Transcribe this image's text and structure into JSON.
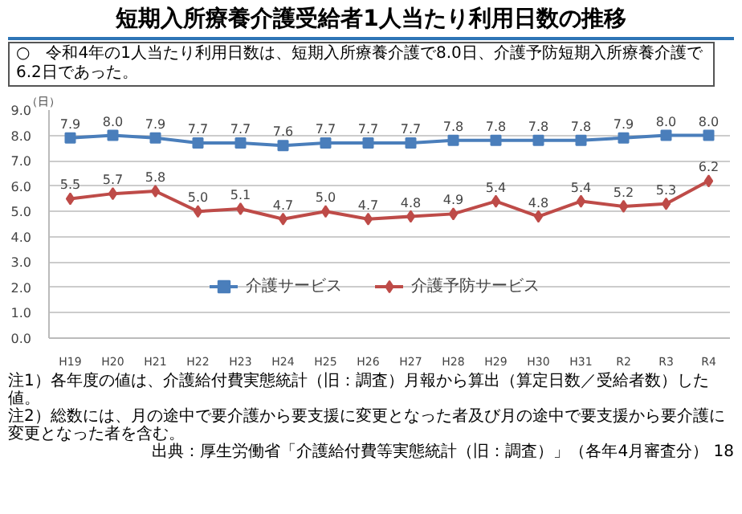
{
  "chart_data": {
    "type": "line",
    "title": "短期入所療養介護受給者1人当たり利用日数の推移",
    "subtitle": "○　令和4年の1人当たり利用日数は、短期入所療養介護で8.0日、介護予防短期入所療養介護で6.2日であった。",
    "ylabel": "（日）",
    "categories": [
      "H19",
      "H20",
      "H21",
      "H22",
      "H23",
      "H24",
      "H25",
      "H26",
      "H27",
      "H28",
      "H29",
      "H30",
      "H31",
      "R2",
      "R3",
      "R4"
    ],
    "series": [
      {
        "name": "介護サービス",
        "color": "#4a7ebb",
        "marker": "square",
        "values": [
          7.9,
          8.0,
          7.9,
          7.7,
          7.7,
          7.6,
          7.7,
          7.7,
          7.7,
          7.8,
          7.8,
          7.8,
          7.8,
          7.9,
          8.0,
          8.0
        ],
        "value_labels": [
          "7.9",
          "8.0",
          "7.9",
          "7.7",
          "7.7",
          "7.6",
          "7.7",
          "7.7",
          "7.7",
          "7.8",
          "7.8",
          "7.8",
          "7.8",
          "7.9",
          "8.0",
          "8.0"
        ]
      },
      {
        "name": "介護予防サービス",
        "color": "#be4b48",
        "marker": "diamond",
        "values": [
          5.5,
          5.7,
          5.8,
          5.0,
          5.1,
          4.7,
          5.0,
          4.7,
          4.8,
          4.9,
          5.4,
          4.8,
          5.4,
          5.2,
          5.3,
          6.2
        ],
        "value_labels": [
          "5.5",
          "5.7",
          "5.8",
          "5.0",
          "5.1",
          "4.7",
          "5.0",
          "4.7",
          "4.8",
          "4.9",
          "5.4",
          "4.8",
          "5.4",
          "5.2",
          "5.3",
          "6.2"
        ]
      }
    ],
    "ylim": [
      0,
      9
    ],
    "yticks": [
      {
        "value": 0,
        "label": "0.0"
      },
      {
        "value": 1,
        "label": "1.0"
      },
      {
        "value": 2,
        "label": "2.0"
      },
      {
        "value": 3,
        "label": "3.0"
      },
      {
        "value": 4,
        "label": "4.0"
      },
      {
        "value": 5,
        "label": "5.0"
      },
      {
        "value": 6,
        "label": "6.0"
      },
      {
        "value": 7,
        "label": "7.0"
      },
      {
        "value": 8,
        "label": "8.0"
      },
      {
        "value": 9,
        "label": "9.0"
      }
    ],
    "grid": "y",
    "legend": "center",
    "annotations": [
      "注1）各年度の値は、介護給付費実態統計（旧：調査）月報から算出（算定日数／受給者数）した値。",
      "注2）総数には、月の途中で要介護から要支援に変更となった者及び月の途中で要支援から要介護に変更となった者を含む。",
      "出典：厚生労働省「介護給付費等実態統計（旧：調査）」（各年4月審査分）",
      "18"
    ]
  }
}
